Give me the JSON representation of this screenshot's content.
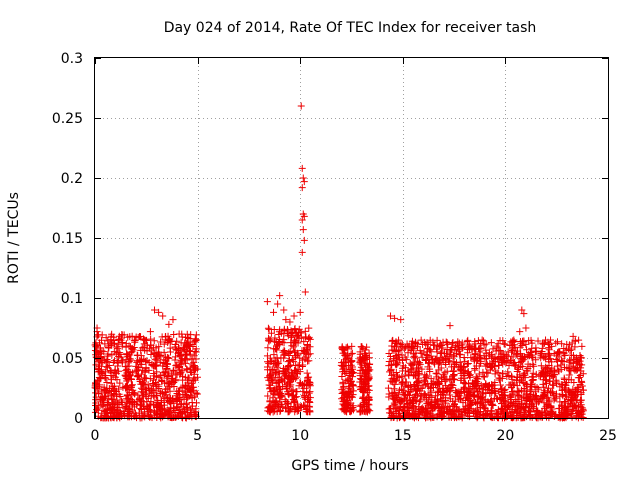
{
  "chart_data": {
    "type": "scatter",
    "title": "Day 024 of 2014, Rate Of TEC Index for receiver tash",
    "xlabel": "GPS time / hours",
    "ylabel": "ROTI / TECUs",
    "xlim": [
      0,
      25
    ],
    "ylim": [
      0,
      0.3
    ],
    "xticks": [
      0,
      5,
      10,
      15,
      20,
      25
    ],
    "xtick_labels": [
      "0",
      "5",
      "10",
      "15",
      "20",
      "25"
    ],
    "yticks": [
      0,
      0.05,
      0.1,
      0.15,
      0.2,
      0.25,
      0.3
    ],
    "ytick_labels": [
      "0",
      "0.05",
      "0.1",
      "0.15",
      "0.2",
      "0.25",
      "0.3"
    ],
    "grid": true,
    "marker": "+",
    "color": "#ee0000",
    "clusters": [
      {
        "x_range": [
          0.0,
          5.0
        ],
        "y_range": [
          0.0,
          0.07
        ],
        "count": 900
      },
      {
        "x_range": [
          8.4,
          10.5
        ],
        "y_range": [
          0.005,
          0.075
        ],
        "count": 380
      },
      {
        "x_range": [
          12.0,
          12.6
        ],
        "y_range": [
          0.005,
          0.06
        ],
        "count": 140
      },
      {
        "x_range": [
          12.9,
          13.4
        ],
        "y_range": [
          0.005,
          0.06
        ],
        "count": 140
      },
      {
        "x_range": [
          14.3,
          23.8
        ],
        "y_range": [
          0.0,
          0.065
        ],
        "count": 1600
      }
    ],
    "outliers": [
      {
        "x": 0.1,
        "y": 0.075
      },
      {
        "x": 0.1,
        "y": 0.072
      },
      {
        "x": 0.2,
        "y": 0.055
      },
      {
        "x": 0.3,
        "y": 0.05
      },
      {
        "x": 2.9,
        "y": 0.09
      },
      {
        "x": 3.1,
        "y": 0.088
      },
      {
        "x": 3.3,
        "y": 0.085
      },
      {
        "x": 2.7,
        "y": 0.072
      },
      {
        "x": 3.6,
        "y": 0.078
      },
      {
        "x": 3.8,
        "y": 0.082
      },
      {
        "x": 4.1,
        "y": 0.07
      },
      {
        "x": 8.4,
        "y": 0.097
      },
      {
        "x": 8.7,
        "y": 0.088
      },
      {
        "x": 8.9,
        "y": 0.095
      },
      {
        "x": 9.0,
        "y": 0.102
      },
      {
        "x": 9.2,
        "y": 0.09
      },
      {
        "x": 9.3,
        "y": 0.082
      },
      {
        "x": 9.5,
        "y": 0.08
      },
      {
        "x": 9.7,
        "y": 0.085
      },
      {
        "x": 10.05,
        "y": 0.26
      },
      {
        "x": 10.1,
        "y": 0.208
      },
      {
        "x": 10.15,
        "y": 0.2
      },
      {
        "x": 10.2,
        "y": 0.197
      },
      {
        "x": 10.1,
        "y": 0.192
      },
      {
        "x": 10.15,
        "y": 0.17
      },
      {
        "x": 10.2,
        "y": 0.168
      },
      {
        "x": 10.1,
        "y": 0.165
      },
      {
        "x": 10.15,
        "y": 0.157
      },
      {
        "x": 10.2,
        "y": 0.148
      },
      {
        "x": 10.1,
        "y": 0.138
      },
      {
        "x": 10.25,
        "y": 0.105
      },
      {
        "x": 10.0,
        "y": 0.088
      },
      {
        "x": 14.4,
        "y": 0.085
      },
      {
        "x": 14.6,
        "y": 0.083
      },
      {
        "x": 14.9,
        "y": 0.082
      },
      {
        "x": 17.3,
        "y": 0.077
      },
      {
        "x": 20.8,
        "y": 0.09
      },
      {
        "x": 20.9,
        "y": 0.087
      },
      {
        "x": 21.0,
        "y": 0.075
      },
      {
        "x": 20.7,
        "y": 0.072
      },
      {
        "x": 22.2,
        "y": 0.065
      },
      {
        "x": 23.3,
        "y": 0.068
      }
    ]
  }
}
